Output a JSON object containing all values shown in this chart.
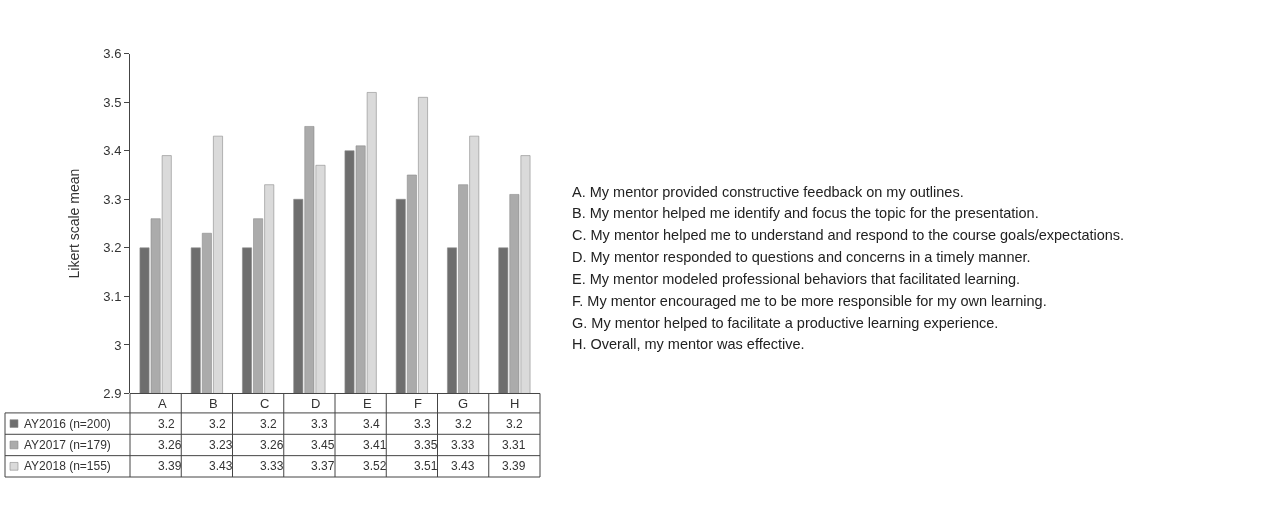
{
  "chart_data": {
    "type": "bar",
    "ylabel": "Likert scale mean",
    "categories": [
      "A",
      "B",
      "C",
      "D",
      "E",
      "F",
      "G",
      "H"
    ],
    "series": [
      {
        "name": "AY2016 (n=200)",
        "color": "#6e6e6e",
        "values": [
          3.2,
          3.2,
          3.2,
          3.3,
          3.4,
          3.3,
          3.2,
          3.2
        ]
      },
      {
        "name": "AY2017 (n=179)",
        "color": "#ababab",
        "values": [
          3.26,
          3.23,
          3.26,
          3.45,
          3.41,
          3.35,
          3.33,
          3.31
        ]
      },
      {
        "name": "AY2018 (n=155)",
        "color": "#dadada",
        "values": [
          3.39,
          3.43,
          3.33,
          3.37,
          3.52,
          3.51,
          3.43,
          3.39
        ]
      }
    ],
    "ylim": [
      2.9,
      3.6
    ],
    "yticks": [
      2.9,
      3,
      3.1,
      3.2,
      3.3,
      3.4,
      3.5,
      3.6
    ],
    "data_labels": true,
    "legend": "bottom left",
    "annotations": [
      "A. My mentor provided constructive feedback on my outlines.",
      "B. My mentor helped me identify and focus the topic for the presentation.",
      "C. My mentor helped me to understand and respond to the course goals/expectations.",
      "D. My mentor responded to questions and concerns in a timely manner.",
      "E. My mentor modeled professional behaviors that facilitated learning.",
      "F. My mentor encouraged me to be more responsible for my own learning.",
      "G. My mentor helped to facilitate a productive learning experience.",
      "H. Overall, my mentor was effective."
    ]
  }
}
